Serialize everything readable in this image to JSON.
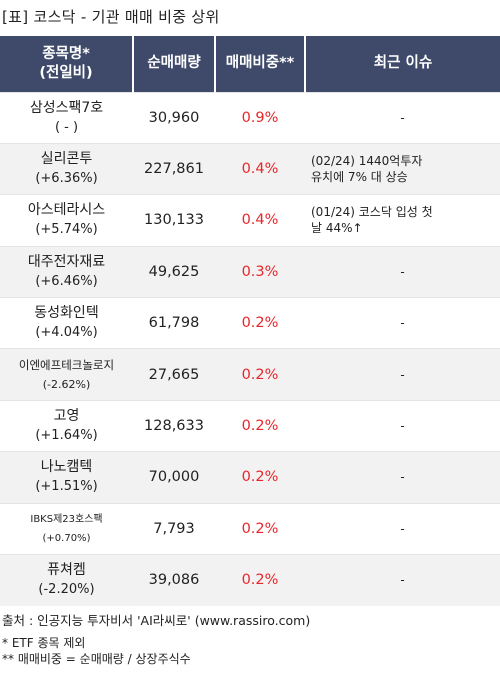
{
  "title": "[표] 코스닥 - 기관 매매 비중 상위",
  "headers": {
    "name": [
      "종목명*",
      "(전일비)"
    ],
    "volume": "순매매량",
    "ratio": "매매비중**",
    "issue": "최근 이슈"
  },
  "rows": [
    {
      "name": "삼성스팩7호",
      "change": "( - )",
      "volume": "30,960",
      "ratio": "0.9%",
      "issue": [
        "-"
      ]
    },
    {
      "name": "실리콘투",
      "change": "(+6.36%)",
      "volume": "227,861",
      "ratio": "0.4%",
      "issue": [
        "(02/24) 1440억투자",
        "유치에 7% 대 상승"
      ]
    },
    {
      "name": "아스테라시스",
      "change": "(+5.74%)",
      "volume": "130,133",
      "ratio": "0.4%",
      "issue": [
        "(01/24) 코스닥 입성 첫",
        "날 44%↑"
      ]
    },
    {
      "name": "대주전자재료",
      "change": "(+6.46%)",
      "volume": "49,625",
      "ratio": "0.3%",
      "issue": [
        "-"
      ]
    },
    {
      "name": "동성화인텍",
      "change": "(+4.04%)",
      "volume": "61,798",
      "ratio": "0.2%",
      "issue": [
        "-"
      ]
    },
    {
      "name": "이엔에프테크놀로지",
      "change": "(-2.62%)",
      "volume": "27,665",
      "ratio": "0.2%",
      "issue": [
        "-"
      ]
    },
    {
      "name": "고영",
      "change": "(+1.64%)",
      "volume": "128,633",
      "ratio": "0.2%",
      "issue": [
        "-"
      ]
    },
    {
      "name": "나노캠텍",
      "change": "(+1.51%)",
      "volume": "70,000",
      "ratio": "0.2%",
      "issue": [
        "-"
      ]
    },
    {
      "name": "IBKS제23호스팩",
      "change": "(+0.70%)",
      "volume": "7,793",
      "ratio": "0.2%",
      "issue": [
        "-"
      ]
    },
    {
      "name": "퓨쳐켐",
      "change": "(-2.20%)",
      "volume": "39,086",
      "ratio": "0.2%",
      "issue": [
        "-"
      ]
    }
  ],
  "footer": {
    "source": "출처 : 인공지능 투자비서 'AI라씨로' (www.rassiro.com)",
    "note1": "* ETF 종목 제외",
    "note2": "** 매매비중 = 순매매량 / 상장주식수"
  },
  "colors": {
    "header_bg": "#3f4a6b",
    "ratio_text": "#e8262a",
    "row_alt": "#f2f2f2"
  }
}
